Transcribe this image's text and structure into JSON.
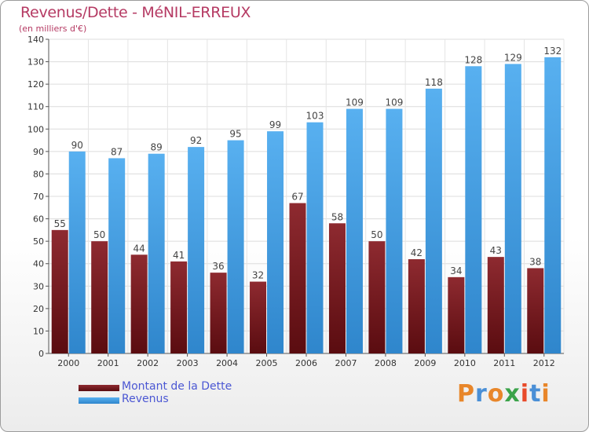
{
  "header": {
    "title": "Revenus/Dette - MéNIL-ERREUX",
    "subtitle": "(en milliers d'€)"
  },
  "chart_data": {
    "type": "bar",
    "categories": [
      "2000",
      "2001",
      "2002",
      "2003",
      "2004",
      "2005",
      "2006",
      "2007",
      "2008",
      "2009",
      "2010",
      "2011",
      "2012"
    ],
    "series": [
      {
        "name": "Montant de la Dette",
        "color": "#7a1a1f",
        "values": [
          55,
          50,
          44,
          41,
          36,
          32,
          67,
          58,
          50,
          42,
          34,
          43,
          38
        ]
      },
      {
        "name": "Revenus",
        "color": "#4aa3e6",
        "values": [
          90,
          87,
          89,
          92,
          95,
          99,
          103,
          109,
          109,
          118,
          128,
          129,
          132
        ]
      }
    ],
    "ylim": [
      0,
      140
    ],
    "yticks": [
      0,
      10,
      20,
      30,
      40,
      50,
      60,
      70,
      80,
      90,
      100,
      110,
      120,
      130,
      140
    ],
    "grid": true,
    "legend_position": "bottom-left"
  },
  "legend": {
    "items": [
      {
        "label": "Montant de la Dette",
        "color": "#7a1a1f"
      },
      {
        "label": "Revenus",
        "color": "#4aa3e6"
      }
    ]
  },
  "logo": {
    "text": "Proxiti"
  }
}
